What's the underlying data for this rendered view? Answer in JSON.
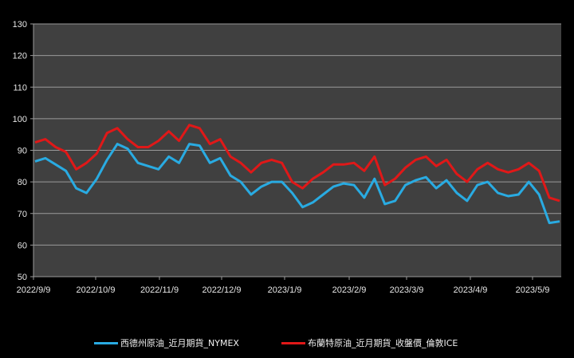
{
  "chart_data": {
    "type": "line",
    "title": "",
    "xlabel": "",
    "ylabel": "",
    "ylim": [
      50,
      130
    ],
    "yticks": [
      50,
      60,
      70,
      80,
      90,
      100,
      110,
      120,
      130
    ],
    "xticks": [
      "2022/9/9",
      "2022/10/9",
      "2022/11/9",
      "2022/12/9",
      "2023/1/9",
      "2023/2/9",
      "2023/3/9",
      "2023/4/9",
      "2023/5/9"
    ],
    "grid": true,
    "legend_position": "bottom",
    "background": "#404040",
    "x": [
      "2022/9/9",
      "2022/9/14",
      "2022/9/19",
      "2022/9/24",
      "2022/9/29",
      "2022/10/4",
      "2022/10/9",
      "2022/10/14",
      "2022/10/19",
      "2022/10/24",
      "2022/10/29",
      "2022/11/3",
      "2022/11/9",
      "2022/11/14",
      "2022/11/19",
      "2022/11/24",
      "2022/11/29",
      "2022/12/4",
      "2022/12/9",
      "2022/12/14",
      "2022/12/19",
      "2022/12/24",
      "2022/12/29",
      "2023/1/3",
      "2023/1/9",
      "2023/1/14",
      "2023/1/19",
      "2023/1/24",
      "2023/1/29",
      "2023/2/3",
      "2023/2/9",
      "2023/2/14",
      "2023/2/19",
      "2023/2/24",
      "2023/3/1",
      "2023/3/5",
      "2023/3/9",
      "2023/3/14",
      "2023/3/19",
      "2023/3/24",
      "2023/3/29",
      "2023/4/3",
      "2023/4/9",
      "2023/4/14",
      "2023/4/19",
      "2023/4/24",
      "2023/4/29",
      "2023/5/4",
      "2023/5/9",
      "2023/5/14",
      "2023/5/19",
      "2023/5/24"
    ],
    "series": [
      {
        "name": "西德州原油_近月期貨_NYMEX",
        "color": "#29abe2",
        "values": [
          86.5,
          87.5,
          85.5,
          83.5,
          78,
          76.5,
          81,
          87,
          92,
          90.5,
          86,
          85,
          84,
          88,
          86,
          92,
          91.5,
          86,
          87.5,
          82,
          80,
          76,
          78.5,
          80,
          80,
          76.5,
          72,
          73.5,
          76,
          78.5,
          79.5,
          79,
          75,
          81,
          73,
          74,
          79,
          80.5,
          81.5,
          78,
          80.5,
          76.5,
          74,
          79,
          80,
          76.5,
          75.5,
          76,
          80,
          76,
          67,
          67.5
        ]
      },
      {
        "name": "布蘭特原油_近月期貨_收盤價_倫敦ICE",
        "color": "#e01818",
        "values": [
          92.5,
          93.5,
          91,
          89.5,
          84,
          86,
          89,
          95.5,
          97,
          93.5,
          91,
          91,
          93,
          96,
          93,
          98,
          97,
          92,
          93.5,
          88,
          86,
          83,
          86,
          87,
          86,
          80,
          78,
          81,
          83,
          85.5,
          85.5,
          86,
          83.5,
          88,
          79,
          81,
          84.5,
          87,
          88,
          85,
          87,
          82.5,
          80,
          84,
          86,
          84,
          83,
          84,
          86,
          83.5,
          75,
          74
        ]
      }
    ]
  },
  "legend": {
    "items": [
      {
        "label": "西德州原油_近月期貨_NYMEX",
        "color": "#29abe2"
      },
      {
        "label": "布蘭特原油_近月期貨_收盤價_倫敦ICE",
        "color": "#e01818"
      }
    ]
  }
}
